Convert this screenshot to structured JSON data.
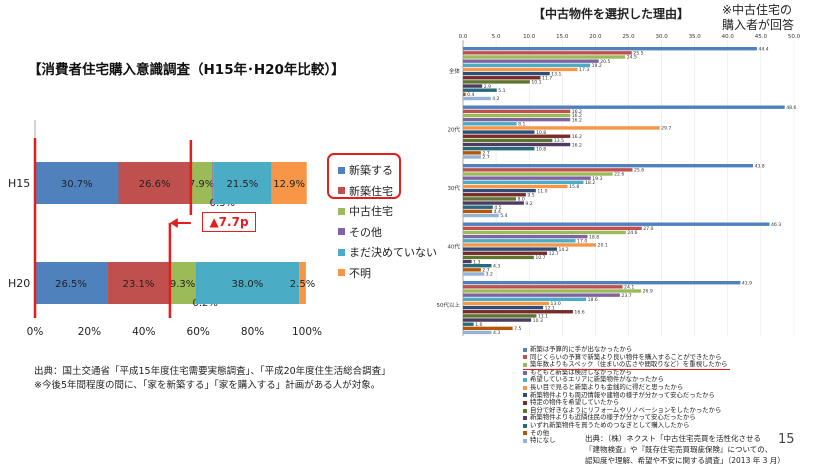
{
  "left_chart_title": "【消費者住宅購入意識調査（H15年･H20年比較）】",
  "annotation_diff": "▲7.7p",
  "left_source_line1": "出典：国土交通省「平成15年度住宅需要実態調査」、「平成20年度住生活総合調査」",
  "left_source_line2": "※今後5年間程度の間に、「家を新築する」「家を購入する」計画がある人が対象。",
  "right_chart_title": "【中古物件を選択した理由】",
  "right_note_line1": "※中古住宅の",
  "right_note_line2": "購入者が回答",
  "right_source_line1": "出典：（株）ネクスト「中古住宅売買を活性化させる",
  "right_source_line2": "『建物検査』や『既存住宅売買瑕疵保険』についての、",
  "right_source_line3": "認知度や理解、希望や不安に関する調査」（2013 年 3 月）",
  "page_number": "15",
  "colors": {
    "shinchiku": "#4F81BD",
    "shinchiku_jutaku": "#C0504D",
    "chuko_jutaku": "#9BBB59",
    "sonota": "#8064A2",
    "mada": "#4BACC6",
    "fumei": "#F79646",
    "red_highlight": "#E41E1E"
  },
  "chart_data": [
    {
      "type": "bar",
      "orientation": "horizontal",
      "stacked": true,
      "categories": [
        "H15",
        "H20"
      ],
      "series": [
        {
          "name": "新築する",
          "values": [
            30.7,
            26.5
          ],
          "labels": [
            "30.7%",
            "26.5%"
          ]
        },
        {
          "name": "新築住宅",
          "values": [
            26.6,
            23.1
          ],
          "labels": [
            "26.6%",
            "23.1%"
          ]
        },
        {
          "name": "中古住宅",
          "values": [
            7.9,
            9.3
          ],
          "labels": [
            "7.9%",
            "9.3%"
          ]
        },
        {
          "name": "その他",
          "values": [
            0.3,
            0.2
          ],
          "labels": [
            "0.3%",
            "0.2%"
          ]
        },
        {
          "name": "まだ決めていない",
          "values": [
            21.5,
            38.0
          ],
          "labels": [
            "21.5%",
            "38.0%"
          ]
        },
        {
          "name": "不明",
          "values": [
            12.9,
            2.5
          ],
          "labels": [
            "12.9%",
            "2.5%"
          ]
        }
      ],
      "xlim": [
        0,
        100
      ],
      "xticks": [
        "0%",
        "20%",
        "40%",
        "60%",
        "80%",
        "100%"
      ],
      "legend": "right",
      "grid": false
    },
    {
      "type": "bar",
      "orientation": "horizontal",
      "stacked": false,
      "groups": [
        "全体",
        "20代",
        "30代",
        "40代",
        "50代以上"
      ],
      "xlim": [
        0,
        50
      ],
      "xticks": [
        "0.0",
        "5.0",
        "10.0",
        "15.0",
        "20.0",
        "25.0",
        "30.0",
        "35.0",
        "40.0",
        "45.0",
        "50.0"
      ],
      "series_names": [
        "新築は予算的に手が出なかったから",
        "同じくらいの予算で新築より良い物件を購入することができたから",
        "築年数よりもスペック（住まいの広さや間取りなど）を重視したから",
        "もともと新築は検討しなかったから",
        "希望しているエリアに新築物件がなかったから",
        "長い目で見ると新築よりも金銭的に得だと思ったから",
        "新築物件よりも周辺情報や建物の様子が分かって安心だったから",
        "特定の物件を希望していたから",
        "自分で好きなようにリフォームやリノベーションをしたかったから",
        "新築物件よりも近隣住民の様子が分かって安心だったから",
        "いずれ新築物件を買うためのつなぎとして購入したから",
        "その他",
        "特になし"
      ],
      "series_colors": [
        "#4F81BD",
        "#C0504D",
        "#9BBB59",
        "#8064A2",
        "#4BACC6",
        "#F79646",
        "#2C4D75",
        "#772C2A",
        "#5F7530",
        "#4D3B62",
        "#276A7C",
        "#B65708",
        "#95B3D7"
      ],
      "values": [
        [
          44.4,
          25.5,
          24.5,
          20.5,
          19.2,
          17.3,
          13.1,
          11.7,
          10.1,
          2.9,
          5.1,
          0.4,
          4.2
        ],
        [
          48.6,
          16.2,
          16.2,
          16.2,
          8.1,
          29.7,
          10.8,
          16.2,
          13.5,
          16.2,
          10.8,
          2.7,
          2.7
        ],
        [
          43.8,
          25.6,
          22.6,
          19.3,
          18.2,
          15.8,
          11.0,
          9.5,
          8.0,
          9.2,
          4.5,
          4.4,
          5.4
        ],
        [
          46.3,
          27.0,
          24.6,
          18.8,
          17.0,
          20.1,
          14.2,
          12.7,
          10.7,
          1.3,
          4.3,
          2.7,
          3.2
        ],
        [
          41.9,
          24.1,
          26.9,
          23.7,
          18.6,
          13.0,
          12.1,
          16.6,
          11.1,
          10.3,
          1.6,
          7.5,
          4.3
        ]
      ],
      "legend": "bottom"
    }
  ]
}
